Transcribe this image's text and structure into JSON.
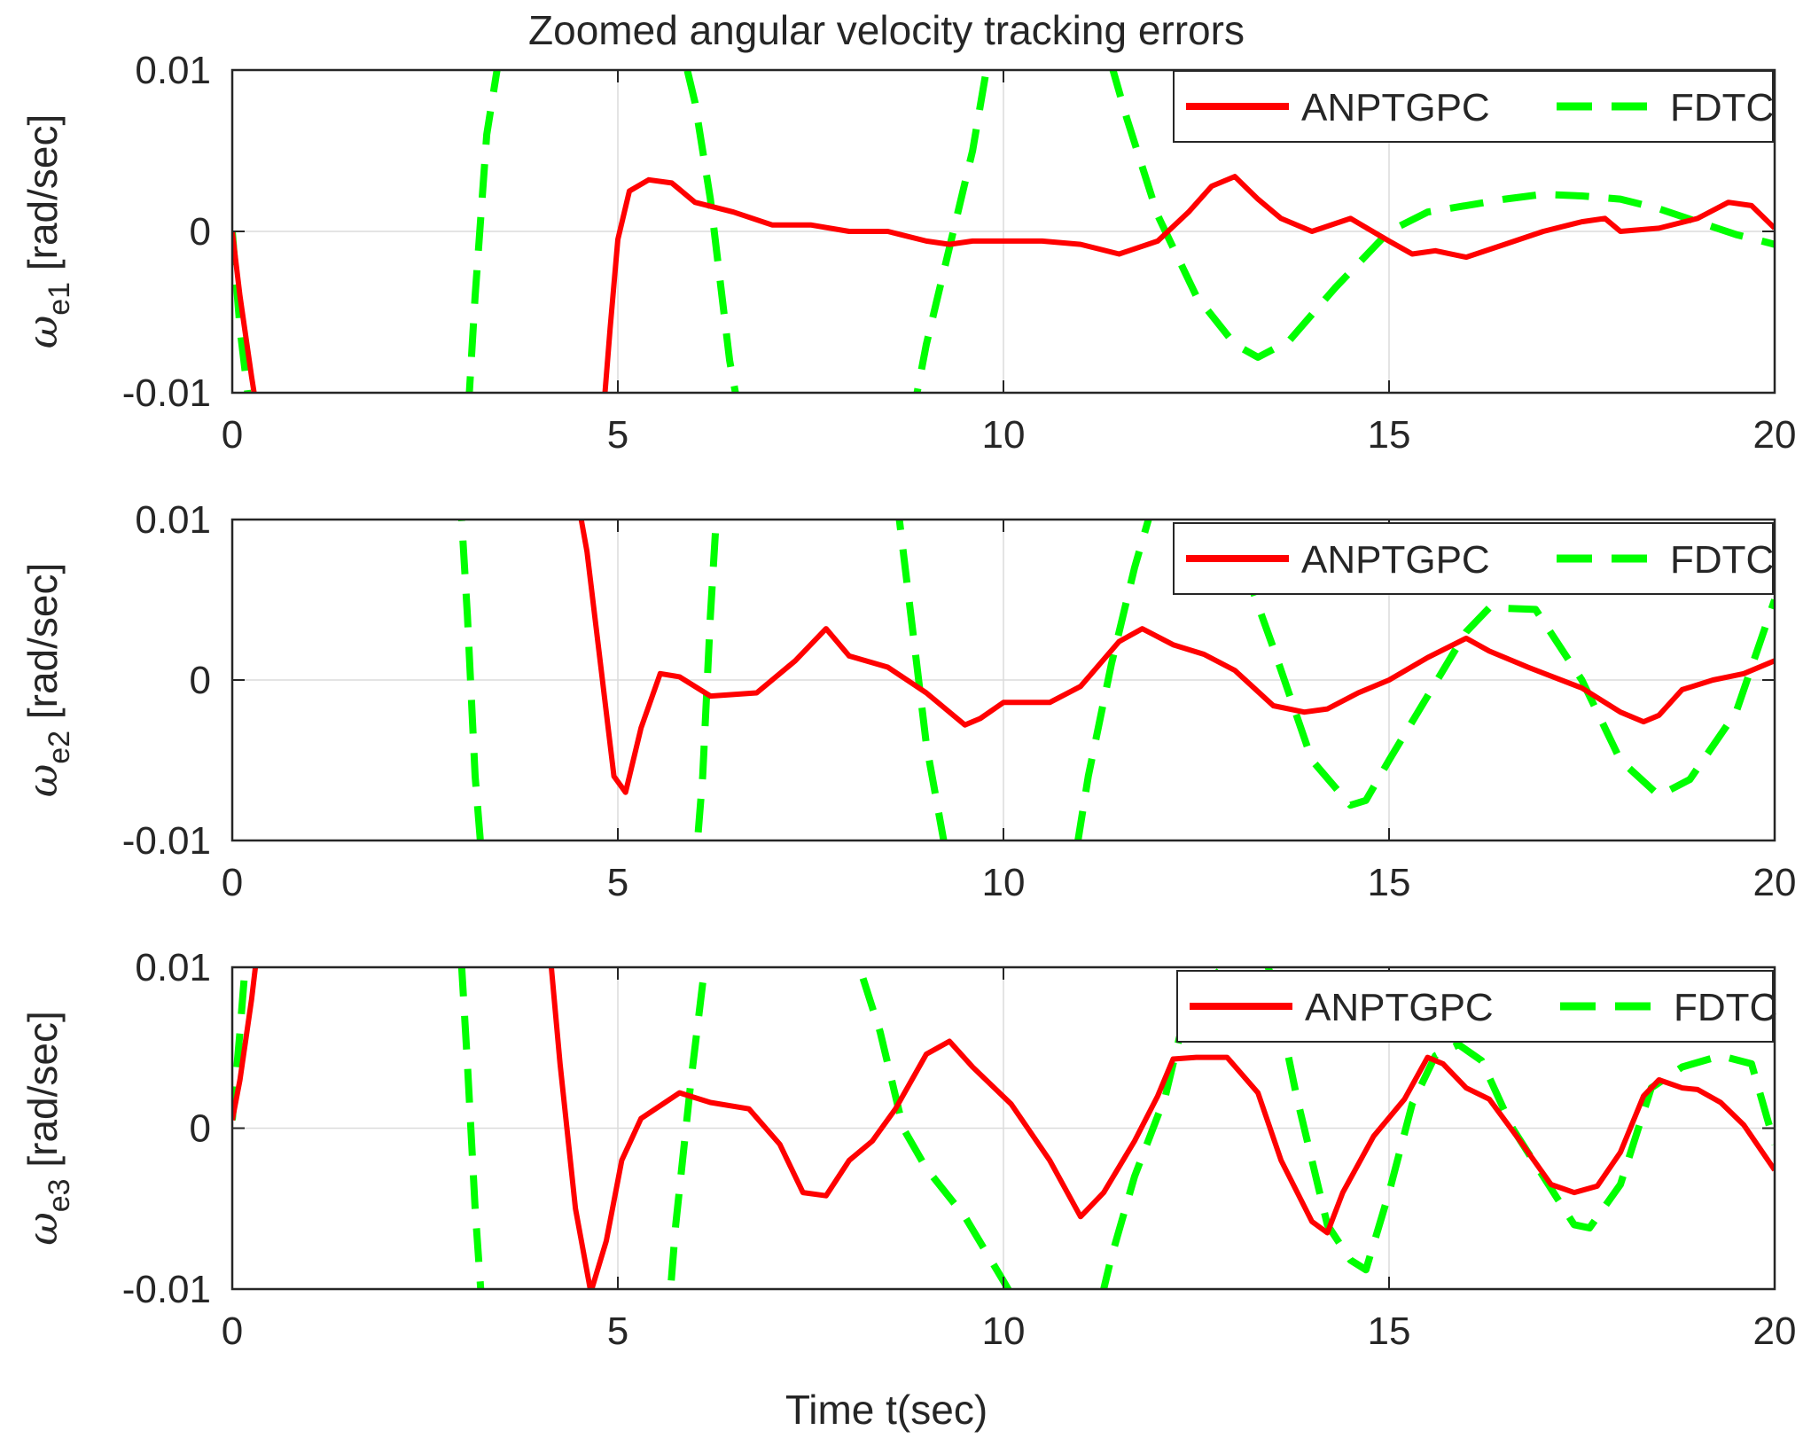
{
  "figure": {
    "title": "Zoomed angular velocity tracking errors",
    "xlabel": "Time t(sec)"
  },
  "colors": {
    "anptgpc": "#ff0000",
    "fdtc": "#00ff00",
    "grid": "#dcdcdc",
    "axis": "#262626"
  },
  "chart_data": [
    {
      "type": "line",
      "title": "Zoomed angular velocity tracking errors",
      "ylabel_symbol": "ω",
      "ylabel_sub": "e1",
      "ylabel_unit": "[rad/sec]",
      "xlabel": "",
      "xlim": [
        0,
        20
      ],
      "ylim": [
        -0.01,
        0.01
      ],
      "xticks": [
        0,
        5,
        10,
        15,
        20
      ],
      "xtick_labels": [
        "0",
        "5",
        "10",
        "15",
        "20"
      ],
      "yticks": [
        -0.01,
        0,
        0.01
      ],
      "ytick_labels": [
        "-0.01",
        "0",
        "0.01"
      ],
      "grid": true,
      "legend": "top-right",
      "series": [
        {
          "name": "ANPTGPC",
          "style": "solid",
          "x": [
            0,
            0.1,
            0.25,
            0.35,
            4.8,
            4.9,
            5.0,
            5.15,
            5.4,
            5.7,
            6.0,
            6.5,
            7.0,
            7.5,
            8.0,
            8.5,
            9.0,
            9.3,
            9.6,
            10.0,
            10.5,
            11.0,
            11.5,
            12.0,
            12.4,
            12.7,
            13.0,
            13.3,
            13.6,
            14.0,
            14.5,
            15.0,
            15.3,
            15.6,
            16.0,
            16.5,
            17.0,
            17.5,
            17.8,
            18.0,
            18.5,
            19.0,
            19.4,
            19.7,
            20.0
          ],
          "y": [
            0,
            -0.004,
            -0.009,
            -0.012,
            -0.012,
            -0.006,
            -0.0005,
            0.0025,
            0.0032,
            0.003,
            0.0018,
            0.0012,
            0.0004,
            0.0004,
            0.0,
            0.0,
            -0.0006,
            -0.0008,
            -0.0006,
            -0.0006,
            -0.0006,
            -0.0008,
            -0.0014,
            -0.0006,
            0.0012,
            0.0028,
            0.0034,
            0.002,
            0.0008,
            0.0,
            0.0008,
            -0.0006,
            -0.0014,
            -0.0012,
            -0.0016,
            -0.0008,
            0.0,
            0.0006,
            0.0008,
            0.0,
            0.0002,
            0.0008,
            0.0018,
            0.0016,
            0.0002
          ]
        },
        {
          "name": "FDTC",
          "style": "dashed",
          "x": [
            0,
            0.1,
            0.25,
            3.05,
            3.15,
            3.3,
            3.5,
            5.8,
            6.0,
            6.2,
            6.45,
            6.6,
            8.8,
            9.0,
            9.3,
            9.6,
            9.85,
            11.3,
            11.6,
            12.0,
            12.5,
            13.0,
            13.3,
            13.7,
            14.3,
            15.0,
            15.5,
            16.0,
            16.5,
            17.0,
            17.5,
            18.0,
            18.5,
            19.0,
            19.5,
            20.0
          ],
          "y": [
            0,
            -0.006,
            -0.012,
            -0.012,
            -0.004,
            0.006,
            0.012,
            0.012,
            0.008,
            0.002,
            -0.008,
            -0.012,
            -0.012,
            -0.007,
            -0.001,
            0.005,
            0.012,
            0.012,
            0.007,
            0.001,
            -0.004,
            -0.007,
            -0.0078,
            -0.0068,
            -0.0035,
            0.0,
            0.0012,
            0.0016,
            0.002,
            0.0023,
            0.0022,
            0.002,
            0.0014,
            0.0006,
            -0.0002,
            -0.0008
          ]
        }
      ]
    },
    {
      "type": "line",
      "ylabel_symbol": "ω",
      "ylabel_sub": "e2",
      "ylabel_unit": "[rad/sec]",
      "xlabel": "",
      "xlim": [
        0,
        20
      ],
      "ylim": [
        -0.01,
        0.01
      ],
      "xticks": [
        0,
        5,
        10,
        15,
        20
      ],
      "xtick_labels": [
        "0",
        "5",
        "10",
        "15",
        "20"
      ],
      "yticks": [
        -0.01,
        0,
        0.01
      ],
      "ytick_labels": [
        "-0.01",
        "0",
        "0.01"
      ],
      "grid": true,
      "legend": "top-right",
      "series": [
        {
          "name": "ANPTGPC",
          "style": "solid",
          "x": [
            4.45,
            4.6,
            4.8,
            4.95,
            5.1,
            5.3,
            5.55,
            5.8,
            6.2,
            6.8,
            7.3,
            7.7,
            8.0,
            8.5,
            9.0,
            9.5,
            9.7,
            10.0,
            10.6,
            11.0,
            11.5,
            11.8,
            12.2,
            12.6,
            13.0,
            13.5,
            13.9,
            14.2,
            14.6,
            15.0,
            15.5,
            16.0,
            16.3,
            16.8,
            17.5,
            18.0,
            18.3,
            18.5,
            18.8,
            19.2,
            19.6,
            20.0
          ],
          "y": [
            0.012,
            0.008,
            0.0,
            -0.006,
            -0.007,
            -0.003,
            0.0004,
            0.0002,
            -0.001,
            -0.0008,
            0.0012,
            0.0032,
            0.0015,
            0.0008,
            -0.0008,
            -0.0028,
            -0.0024,
            -0.0014,
            -0.0014,
            -0.0004,
            0.0024,
            0.0032,
            0.0022,
            0.0016,
            0.0006,
            -0.0016,
            -0.002,
            -0.0018,
            -0.0008,
            0.0,
            0.0014,
            0.0026,
            0.0018,
            0.0008,
            -0.0005,
            -0.002,
            -0.0026,
            -0.0022,
            -0.0006,
            0.0,
            0.0004,
            0.0012
          ]
        },
        {
          "name": "FDTC",
          "style": "dashed",
          "x": [
            2.95,
            3.05,
            3.15,
            3.25,
            6.0,
            6.1,
            6.2,
            6.3,
            8.6,
            8.75,
            9.0,
            9.3,
            10.9,
            11.1,
            11.4,
            11.7,
            12.0,
            13.2,
            13.5,
            14.0,
            14.5,
            14.7,
            15.0,
            15.5,
            16.0,
            16.3,
            16.9,
            17.5,
            18.0,
            18.5,
            18.9,
            19.5,
            20.0
          ],
          "y": [
            0.012,
            0.004,
            -0.006,
            -0.012,
            -0.012,
            -0.006,
            0.004,
            0.012,
            0.012,
            0.006,
            -0.004,
            -0.012,
            -0.012,
            -0.006,
            0.001,
            0.007,
            0.012,
            0.006,
            0.002,
            -0.005,
            -0.0078,
            -0.0075,
            -0.005,
            -0.001,
            0.003,
            0.0045,
            0.0044,
            0.0,
            -0.005,
            -0.0072,
            -0.0062,
            -0.002,
            0.005
          ]
        }
      ]
    },
    {
      "type": "line",
      "ylabel_symbol": "ω",
      "ylabel_sub": "e3",
      "ylabel_unit": "[rad/sec]",
      "xlabel": "Time t(sec)",
      "xlim": [
        0,
        20
      ],
      "ylim": [
        -0.01,
        0.01
      ],
      "xticks": [
        0,
        5,
        10,
        15,
        20
      ],
      "xtick_labels": [
        "0",
        "5",
        "10",
        "15",
        "20"
      ],
      "yticks": [
        -0.01,
        0,
        0.01
      ],
      "ytick_labels": [
        "-0.01",
        "0",
        "0.01"
      ],
      "grid": true,
      "legend": "top-right",
      "series": [
        {
          "name": "ANPTGPC",
          "style": "solid",
          "x": [
            0,
            0.1,
            0.25,
            0.35,
            4.1,
            4.25,
            4.45,
            4.65,
            4.85,
            5.05,
            5.3,
            5.8,
            6.2,
            6.7,
            7.1,
            7.4,
            7.7,
            8.0,
            8.3,
            8.6,
            9.0,
            9.3,
            9.6,
            10.1,
            10.6,
            11.0,
            11.3,
            11.7,
            12.0,
            12.2,
            12.5,
            12.9,
            13.3,
            13.6,
            14.0,
            14.2,
            14.4,
            14.8,
            15.2,
            15.5,
            15.7,
            16.0,
            16.3,
            16.7,
            17.1,
            17.4,
            17.7,
            18.0,
            18.3,
            18.5,
            18.8,
            19.0,
            19.3,
            19.6,
            20.0
          ],
          "y": [
            0.0005,
            0.003,
            0.008,
            0.012,
            0.012,
            0.004,
            -0.005,
            -0.0102,
            -0.007,
            -0.002,
            0.0006,
            0.0022,
            0.0016,
            0.0012,
            -0.001,
            -0.004,
            -0.0042,
            -0.002,
            -0.0008,
            0.0012,
            0.0046,
            0.0054,
            0.0038,
            0.0015,
            -0.002,
            -0.0055,
            -0.004,
            -0.0008,
            0.002,
            0.0043,
            0.0044,
            0.0044,
            0.0022,
            -0.002,
            -0.0058,
            -0.0065,
            -0.004,
            -0.0005,
            0.0018,
            0.0044,
            0.004,
            0.0025,
            0.0018,
            -0.0008,
            -0.0035,
            -0.004,
            -0.0036,
            -0.0015,
            0.002,
            0.003,
            0.0025,
            0.0024,
            0.0016,
            0.0002,
            -0.0026
          ]
        },
        {
          "name": "FDTC",
          "style": "dashed",
          "x": [
            0,
            0.1,
            0.2,
            2.95,
            3.05,
            3.15,
            3.25,
            5.65,
            5.75,
            5.95,
            6.1,
            6.2,
            8.0,
            8.4,
            8.7,
            9.0,
            9.5,
            10.0,
            10.3,
            11.2,
            11.4,
            11.7,
            12.1,
            12.4,
            13.3,
            13.5,
            13.8,
            14.2,
            14.5,
            14.7,
            15.0,
            15.3,
            15.6,
            15.9,
            16.2,
            16.6,
            17.0,
            17.4,
            17.6,
            18.0,
            18.4,
            18.8,
            19.3,
            19.7,
            20.0
          ],
          "y": [
            0.0005,
            0.006,
            0.012,
            0.012,
            0.004,
            -0.005,
            -0.012,
            -0.012,
            -0.006,
            0.003,
            0.009,
            0.012,
            0.012,
            0.006,
            0.0,
            -0.0025,
            -0.0055,
            -0.0095,
            -0.012,
            -0.012,
            -0.008,
            -0.003,
            0.002,
            0.008,
            0.012,
            0.009,
            0.002,
            -0.006,
            -0.0082,
            -0.0088,
            -0.004,
            0.0015,
            0.0045,
            0.0052,
            0.0042,
            0.0,
            -0.003,
            -0.006,
            -0.0062,
            -0.0035,
            0.0025,
            0.0038,
            0.0045,
            0.004,
            -0.001
          ]
        }
      ]
    }
  ]
}
